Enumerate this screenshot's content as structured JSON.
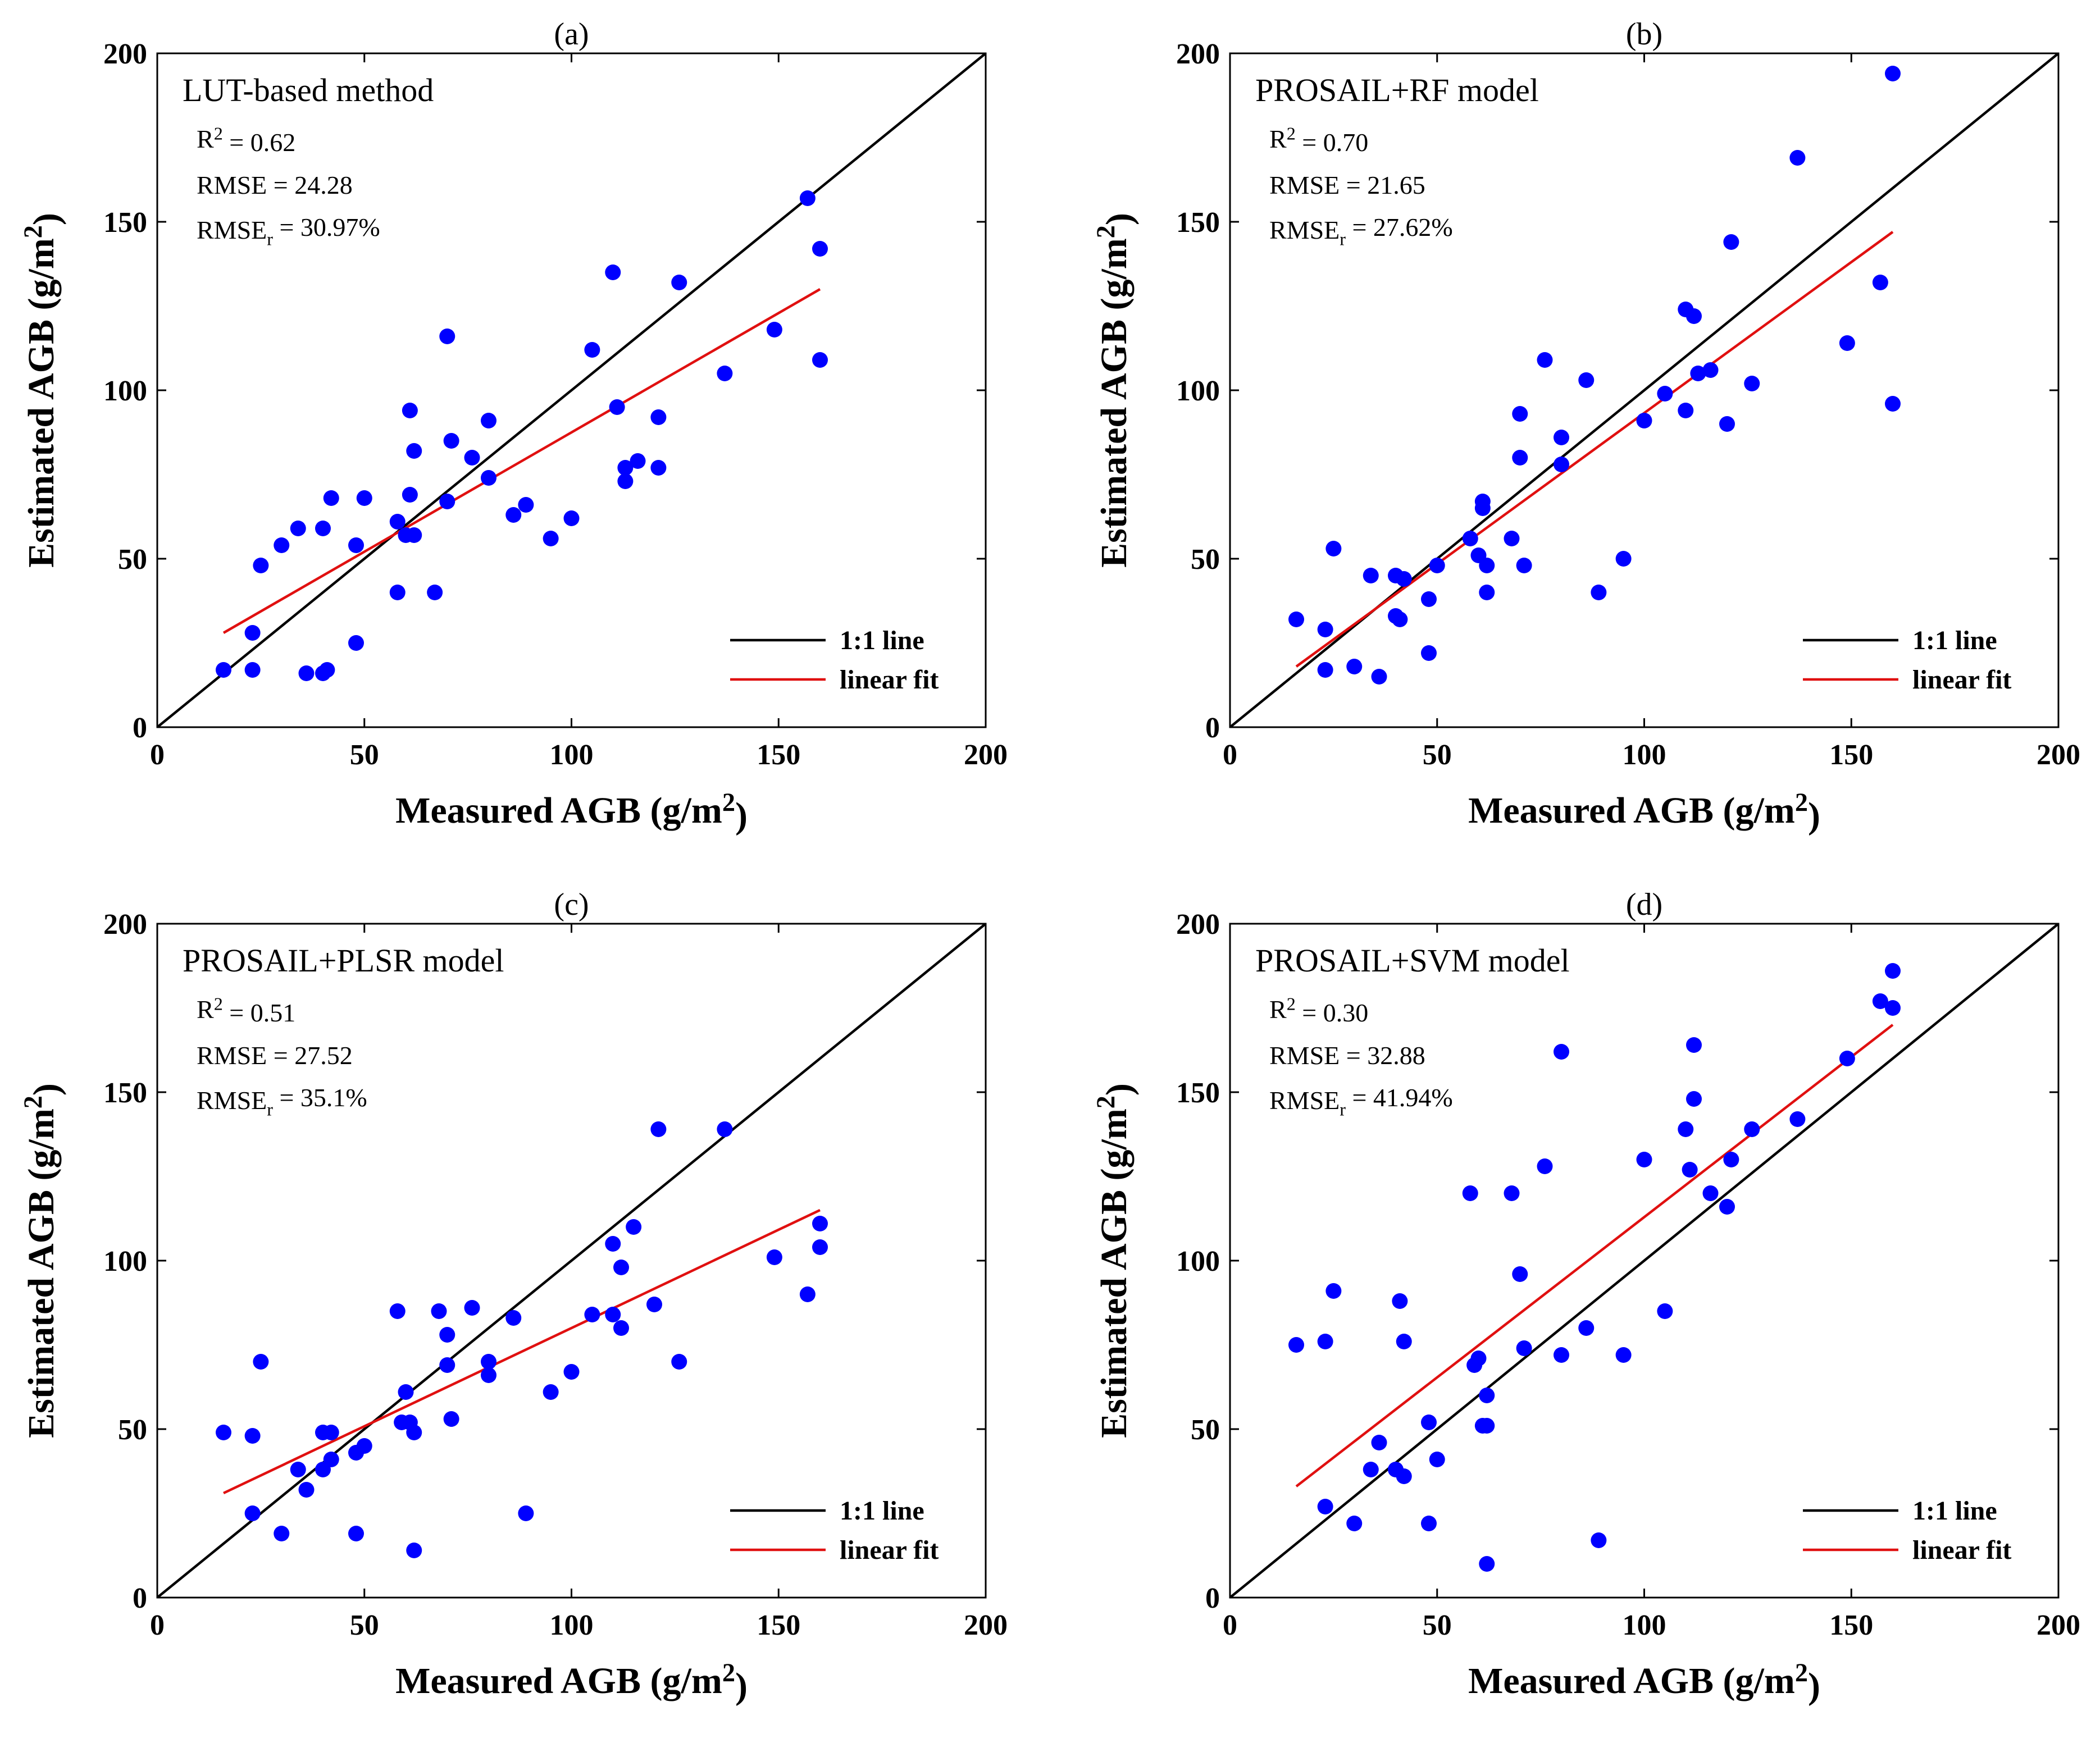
{
  "colors": {
    "points": "#0000ff",
    "identity_line": "#000000",
    "fit_line": "#e01010",
    "axes": "#000000",
    "background": "#ffffff"
  },
  "chart_data": [
    {
      "type": "scatter",
      "panel": "(a)",
      "title": "LUT-based method",
      "xlabel": "Measured AGB (g/m2)",
      "ylabel": "Estimated AGB (g/m2)",
      "xlim": [
        0,
        200
      ],
      "ylim": [
        0,
        200
      ],
      "xticks": [
        "0",
        "50",
        "100",
        "150",
        "200"
      ],
      "yticks": [
        "0",
        "50",
        "100",
        "150",
        "200"
      ],
      "stats": {
        "r2": "R2 = 0.62",
        "rmse": "RMSE = 24.28",
        "rmser": "RMSEr = 30.97%"
      },
      "legend": {
        "identity": "1:1 line",
        "fit": "linear fit",
        "position": "bottom-right"
      },
      "fit_line": {
        "x": [
          16,
          160
        ],
        "y": [
          28,
          130
        ]
      },
      "points": [
        [
          16,
          17
        ],
        [
          23,
          28
        ],
        [
          23,
          17
        ],
        [
          25,
          48
        ],
        [
          30,
          54
        ],
        [
          34,
          59
        ],
        [
          36,
          16
        ],
        [
          40,
          59
        ],
        [
          40,
          16
        ],
        [
          41,
          17
        ],
        [
          42,
          68
        ],
        [
          48,
          54
        ],
        [
          48,
          25
        ],
        [
          50,
          68
        ],
        [
          58,
          40
        ],
        [
          58,
          61
        ],
        [
          60,
          57
        ],
        [
          61,
          94
        ],
        [
          61,
          69
        ],
        [
          62,
          57
        ],
        [
          62,
          82
        ],
        [
          67,
          40
        ],
        [
          70,
          116
        ],
        [
          70,
          67
        ],
        [
          71,
          85
        ],
        [
          76,
          80
        ],
        [
          80,
          74
        ],
        [
          80,
          91
        ],
        [
          86,
          63
        ],
        [
          89,
          66
        ],
        [
          95,
          56
        ],
        [
          100,
          62
        ],
        [
          105,
          112
        ],
        [
          110,
          135
        ],
        [
          111,
          95
        ],
        [
          113,
          77
        ],
        [
          113,
          73
        ],
        [
          116,
          79
        ],
        [
          121,
          77
        ],
        [
          121,
          92
        ],
        [
          126,
          132
        ],
        [
          137,
          105
        ],
        [
          149,
          118
        ],
        [
          157,
          157
        ],
        [
          160,
          142
        ],
        [
          160,
          109
        ]
      ]
    },
    {
      "type": "scatter",
      "panel": "(b)",
      "title": "PROSAIL+RF model",
      "xlabel": "Measured AGB (g/m2)",
      "ylabel": "Estimated AGB (g/m2)",
      "xlim": [
        0,
        200
      ],
      "ylim": [
        0,
        200
      ],
      "xticks": [
        "0",
        "50",
        "100",
        "150",
        "200"
      ],
      "yticks": [
        "0",
        "50",
        "100",
        "150",
        "200"
      ],
      "stats": {
        "r2": "R2 = 0.70",
        "rmse": "RMSE = 21.65",
        "rmser": "RMSEr = 27.62%"
      },
      "legend": {
        "identity": "1:1 line",
        "fit": "linear fit",
        "position": "bottom-right"
      },
      "fit_line": {
        "x": [
          16,
          160
        ],
        "y": [
          18,
          147
        ]
      },
      "points": [
        [
          16,
          32
        ],
        [
          23,
          29
        ],
        [
          23,
          17
        ],
        [
          25,
          53
        ],
        [
          30,
          18
        ],
        [
          34,
          45
        ],
        [
          36,
          15
        ],
        [
          40,
          45
        ],
        [
          40,
          33
        ],
        [
          41,
          32
        ],
        [
          42,
          44
        ],
        [
          48,
          22
        ],
        [
          48,
          38
        ],
        [
          50,
          48
        ],
        [
          58,
          56
        ],
        [
          60,
          51
        ],
        [
          61,
          67
        ],
        [
          61,
          65
        ],
        [
          62,
          48
        ],
        [
          62,
          40
        ],
        [
          68,
          56
        ],
        [
          70,
          93
        ],
        [
          70,
          80
        ],
        [
          71,
          48
        ],
        [
          76,
          109
        ],
        [
          80,
          78
        ],
        [
          80,
          86
        ],
        [
          86,
          103
        ],
        [
          89,
          40
        ],
        [
          95,
          50
        ],
        [
          100,
          91
        ],
        [
          105,
          99
        ],
        [
          110,
          124
        ],
        [
          110,
          94
        ],
        [
          112,
          122
        ],
        [
          113,
          105
        ],
        [
          116,
          106
        ],
        [
          120,
          90
        ],
        [
          121,
          144
        ],
        [
          126,
          102
        ],
        [
          137,
          169
        ],
        [
          149,
          114
        ],
        [
          157,
          132
        ],
        [
          160,
          194
        ],
        [
          160,
          96
        ]
      ]
    },
    {
      "type": "scatter",
      "panel": "(c)",
      "title": "PROSAIL+PLSR model",
      "xlabel": "Measured AGB (g/m2)",
      "ylabel": "Estimated AGB (g/m2)",
      "xlim": [
        0,
        200
      ],
      "ylim": [
        0,
        200
      ],
      "xticks": [
        "0",
        "50",
        "100",
        "150",
        "200"
      ],
      "yticks": [
        "0",
        "50",
        "100",
        "150",
        "200"
      ],
      "stats": {
        "r2": "R2 = 0.51",
        "rmse": "RMSE = 27.52",
        "rmser": "RMSEr = 35.1%"
      },
      "legend": {
        "identity": "1:1 line",
        "fit": "linear fit",
        "position": "bottom-right"
      },
      "fit_line": {
        "x": [
          16,
          160
        ],
        "y": [
          31,
          115
        ]
      },
      "points": [
        [
          16,
          49
        ],
        [
          23,
          48
        ],
        [
          23,
          25
        ],
        [
          25,
          70
        ],
        [
          30,
          19
        ],
        [
          34,
          38
        ],
        [
          36,
          32
        ],
        [
          40,
          38
        ],
        [
          40,
          49
        ],
        [
          42,
          41
        ],
        [
          42,
          49
        ],
        [
          48,
          19
        ],
        [
          48,
          43
        ],
        [
          50,
          45
        ],
        [
          58,
          85
        ],
        [
          59,
          52
        ],
        [
          60,
          61
        ],
        [
          61,
          52
        ],
        [
          62,
          14
        ],
        [
          62,
          49
        ],
        [
          68,
          85
        ],
        [
          70,
          78
        ],
        [
          70,
          69
        ],
        [
          71,
          53
        ],
        [
          76,
          86
        ],
        [
          80,
          70
        ],
        [
          80,
          66
        ],
        [
          86,
          83
        ],
        [
          89,
          25
        ],
        [
          95,
          61
        ],
        [
          100,
          67
        ],
        [
          105,
          84
        ],
        [
          110,
          84
        ],
        [
          110,
          105
        ],
        [
          112,
          98
        ],
        [
          112,
          80
        ],
        [
          115,
          110
        ],
        [
          120,
          87
        ],
        [
          121,
          139
        ],
        [
          126,
          70
        ],
        [
          137,
          139
        ],
        [
          149,
          101
        ],
        [
          157,
          90
        ],
        [
          160,
          111
        ],
        [
          160,
          104
        ]
      ]
    },
    {
      "type": "scatter",
      "panel": "(d)",
      "title": "PROSAIL+SVM model",
      "xlabel": "Measured AGB (g/m2)",
      "ylabel": "Estimated AGB (g/m2)",
      "xlim": [
        0,
        200
      ],
      "ylim": [
        0,
        200
      ],
      "xticks": [
        "0",
        "50",
        "100",
        "150",
        "200"
      ],
      "yticks": [
        "0",
        "50",
        "100",
        "150",
        "200"
      ],
      "stats": {
        "r2": "R2 = 0.30",
        "rmse": "RMSE = 32.88",
        "rmser": "RMSEr = 41.94%"
      },
      "legend": {
        "identity": "1:1 line",
        "fit": "linear fit",
        "position": "bottom-right"
      },
      "fit_line": {
        "x": [
          16,
          160
        ],
        "y": [
          33,
          170
        ]
      },
      "points": [
        [
          16,
          75
        ],
        [
          23,
          76
        ],
        [
          23,
          27
        ],
        [
          25,
          91
        ],
        [
          30,
          22
        ],
        [
          34,
          38
        ],
        [
          36,
          46
        ],
        [
          40,
          38
        ],
        [
          41,
          88
        ],
        [
          42,
          76
        ],
        [
          42,
          36
        ],
        [
          48,
          52
        ],
        [
          48,
          22
        ],
        [
          50,
          41
        ],
        [
          58,
          120
        ],
        [
          59,
          69
        ],
        [
          60,
          71
        ],
        [
          61,
          51
        ],
        [
          62,
          60
        ],
        [
          62,
          51
        ],
        [
          62,
          10
        ],
        [
          68,
          120
        ],
        [
          70,
          96
        ],
        [
          71,
          74
        ],
        [
          76,
          128
        ],
        [
          80,
          162
        ],
        [
          80,
          72
        ],
        [
          86,
          80
        ],
        [
          89,
          17
        ],
        [
          95,
          72
        ],
        [
          100,
          130
        ],
        [
          105,
          85
        ],
        [
          110,
          139
        ],
        [
          111,
          127
        ],
        [
          112,
          164
        ],
        [
          112,
          148
        ],
        [
          116,
          120
        ],
        [
          120,
          116
        ],
        [
          121,
          130
        ],
        [
          126,
          139
        ],
        [
          137,
          142
        ],
        [
          149,
          160
        ],
        [
          157,
          177
        ],
        [
          160,
          186
        ],
        [
          160,
          175
        ]
      ]
    }
  ]
}
